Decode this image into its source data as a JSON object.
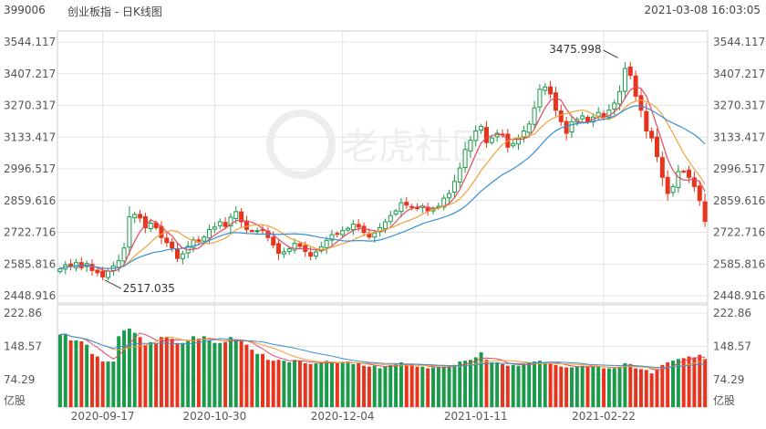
{
  "header": {
    "code": "399006",
    "name": "创业板指 - 日K线图",
    "datetime": "2021-03-08 16:03:05"
  },
  "watermark": {
    "text": "老虎社区"
  },
  "colors": {
    "up": "#1a9a4a",
    "down": "#e8341c",
    "ma5": "#e14a5e",
    "ma10": "#f2a23a",
    "ma20": "#3a8fd6",
    "grid": "#e4e4e4",
    "axis": "#cccccc"
  },
  "chart_data": [
    {
      "type": "candlestick",
      "title": "",
      "ylim": [
        2448.916,
        3544.117
      ],
      "y_tick_labels": [
        "3544.117",
        "3407.217",
        "3270.317",
        "3133.417",
        "2996.517",
        "2859.616",
        "2722.716",
        "2585.816",
        "2448.916"
      ],
      "x_labels": [
        "2020-09-17",
        "2020-10-30",
        "2020-12-04",
        "2021-01-11",
        "2021-02-22"
      ],
      "annotations": [
        {
          "text": "3475.998",
          "value": 3475.998
        },
        {
          "text": "2517.035",
          "value": 2517.035
        }
      ],
      "moving_averages": [
        "ma5",
        "ma10",
        "ma20"
      ],
      "series": [
        {
          "close": [
            2565,
            2582,
            2575,
            2592,
            2570,
            2588,
            2558,
            2548,
            2530,
            2555,
            2578,
            2600,
            2655,
            2790,
            2800,
            2785,
            2742,
            2762,
            2742,
            2700,
            2678,
            2655,
            2610,
            2630,
            2662,
            2690,
            2680,
            2702,
            2735,
            2745,
            2768,
            2748,
            2788,
            2812,
            2768,
            2735,
            2730,
            2730,
            2732,
            2700,
            2668,
            2632,
            2638,
            2652,
            2675,
            2662,
            2640,
            2620,
            2638,
            2660,
            2688,
            2712,
            2715,
            2730,
            2740,
            2758,
            2745,
            2722,
            2702,
            2720,
            2742,
            2768,
            2795,
            2815,
            2850,
            2840,
            2830,
            2825,
            2836,
            2815,
            2825,
            2835,
            2870,
            2890,
            2942,
            3000,
            3080,
            3120,
            3160,
            3180,
            3110,
            3130,
            3150,
            3145,
            3090,
            3106,
            3130,
            3160,
            3190,
            3260,
            3340,
            3350,
            3320,
            3250,
            3200,
            3150,
            3200,
            3210,
            3225,
            3200,
            3220,
            3240,
            3220,
            3250,
            3280,
            3330,
            3430,
            3400,
            3310,
            3250,
            3160,
            3130,
            3050,
            2960,
            2890,
            2920,
            2985,
            2985,
            2960,
            2920,
            2860,
            2770
          ]
        }
      ]
    },
    {
      "type": "bar",
      "title": "",
      "ylim": [
        0,
        222.86
      ],
      "y_tick_labels": [
        "222.86",
        "148.57",
        "74.29"
      ],
      "unit": "亿股",
      "series": [
        {
          "values": [
            172,
            174,
            158,
            158,
            156,
            148,
            126,
            120,
            108,
            108,
            108,
            168,
            182,
            186,
            176,
            166,
            148,
            154,
            150,
            166,
            166,
            162,
            152,
            152,
            158,
            168,
            162,
            168,
            158,
            152,
            152,
            154,
            166,
            160,
            156,
            148,
            136,
            126,
            126,
            112,
            110,
            112,
            110,
            106,
            112,
            110,
            104,
            102,
            104,
            104,
            110,
            106,
            104,
            106,
            108,
            102,
            104,
            98,
            96,
            98,
            92,
            96,
            100,
            102,
            106,
            100,
            102,
            96,
            96,
            92,
            94,
            96,
            96,
            96,
            100,
            108,
            110,
            112,
            118,
            130,
            112,
            106,
            106,
            102,
            98,
            100,
            98,
            102,
            104,
            108,
            110,
            106,
            104,
            100,
            96,
            94,
            94,
            96,
            98,
            96,
            96,
            96,
            92,
            92,
            92,
            96,
            104,
            102,
            92,
            90,
            88,
            80,
            90,
            100,
            106,
            110,
            114,
            116,
            120,
            118,
            124,
            114
          ]
        }
      ]
    }
  ]
}
